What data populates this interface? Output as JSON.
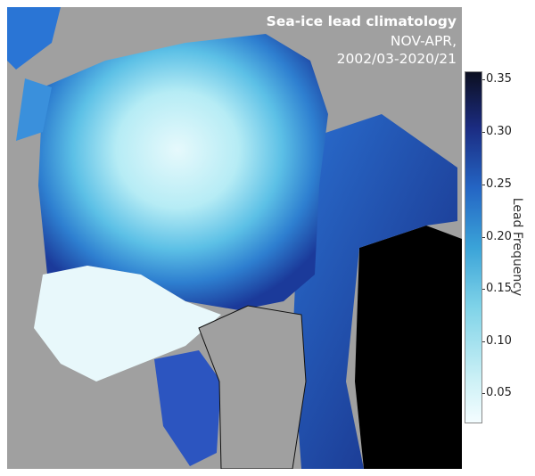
{
  "title": {
    "line1": "Sea-ice lead climatology",
    "line2": "NOV-APR,",
    "line3": "2002/03-2020/21"
  },
  "colorbar": {
    "label": "Lead Frequency",
    "range": [
      0.02,
      0.36
    ],
    "ticks": [
      "0.05",
      "0.10",
      "0.15",
      "0.20",
      "0.25",
      "0.30",
      "0.35"
    ],
    "colors": [
      "#f4fdff",
      "#7fd3e8",
      "#3aa3d8",
      "#2465c4",
      "#1b2c82",
      "#0c0f20"
    ]
  },
  "colors": {
    "land": "#a0a0a0",
    "no_data": "#000000"
  }
}
